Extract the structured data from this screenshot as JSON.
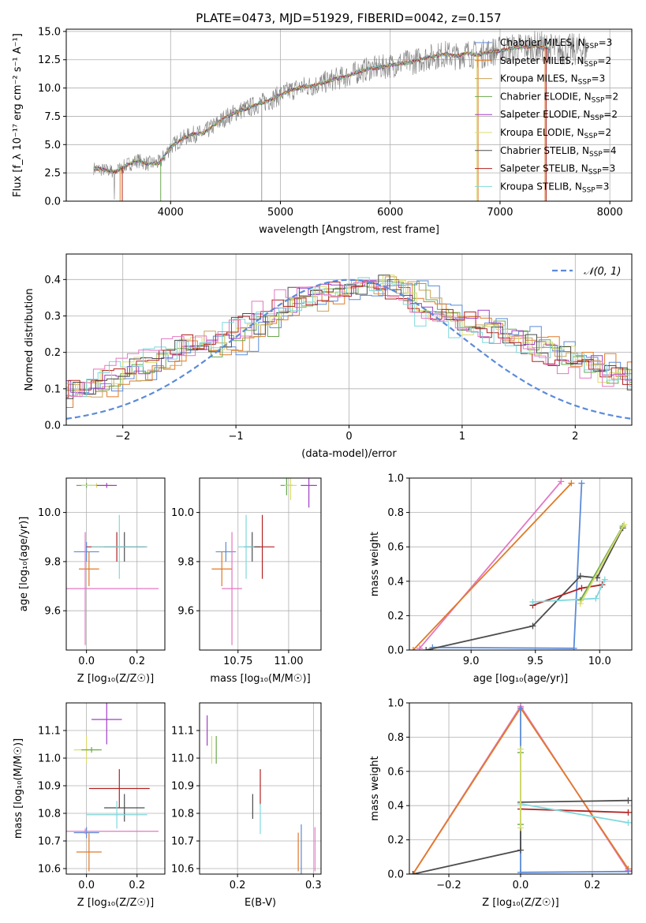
{
  "figure": {
    "title": "PLATE=0473, MJD=51929, FIBERID=0042, z=0.157",
    "colors": {
      "chabrier_miles": "#5b8bd9",
      "salpeter_miles": "#e07a28",
      "kroupa_miles": "#c9a25a",
      "chabrier_elodie": "#6aa84f",
      "salpeter_elodie": "#a23ec7",
      "kroupa_elodie": "#d9dd6c",
      "chabrier_stelib": "#4d4d4d",
      "salpeter_stelib": "#b22222",
      "kroupa_stelib": "#7fd8dc",
      "pink": "#e377c2",
      "gaussian": "#5b8bd9"
    }
  },
  "chart_data": [
    {
      "id": "spectrum",
      "type": "line",
      "xlabel": "wavelength [Angstrom, rest frame]",
      "ylabel": "Flux [f_λ 10⁻¹⁷ erg cm⁻² s⁻¹ A⁻¹]",
      "xlim": [
        3050,
        8200
      ],
      "ylim": [
        0,
        15.2
      ],
      "xticks": [
        4000,
        5000,
        6000,
        7000,
        8000
      ],
      "yticks": [
        0.0,
        2.5,
        5.0,
        7.5,
        10.0,
        12.5,
        15.0
      ],
      "ytick_labels": [
        "0.0",
        "2.5",
        "5.0",
        "7.5",
        "10.0",
        "12.5",
        "15.0"
      ],
      "legend": [
        {
          "name": "Chabrier MILES, N_SSP=3",
          "main": "Chabrier MILES, N",
          "sub": "SSP",
          "tail": "=3",
          "color": "#5b8bd9"
        },
        {
          "name": "Salpeter MILES, N_SSP=2",
          "main": "Salpeter MILES, N",
          "sub": "SSP",
          "tail": "=2",
          "color": "#e07a28"
        },
        {
          "name": "Kroupa MILES, N_SSP=3",
          "main": "Kroupa MILES, N",
          "sub": "SSP",
          "tail": "=3",
          "color": "#c9a25a"
        },
        {
          "name": "Chabrier ELODIE, N_SSP=2",
          "main": "Chabrier ELODIE, N",
          "sub": "SSP",
          "tail": "=2",
          "color": "#6aa84f"
        },
        {
          "name": "Salpeter ELODIE, N_SSP=2",
          "main": "Salpeter ELODIE, N",
          "sub": "SSP",
          "tail": "=2",
          "color": "#a23ec7"
        },
        {
          "name": "Kroupa ELODIE, N_SSP=2",
          "main": "Kroupa ELODIE, N",
          "sub": "SSP",
          "tail": "=2",
          "color": "#d9dd6c"
        },
        {
          "name": "Chabrier STELIB, N_SSP=4",
          "main": "Chabrier STELIB, N",
          "sub": "SSP",
          "tail": "=4",
          "color": "#4d4d4d"
        },
        {
          "name": "Salpeter STELIB, N_SSP=3",
          "main": "Salpeter STELIB, N",
          "sub": "SSP",
          "tail": "=3",
          "color": "#b22222"
        },
        {
          "name": "Kroupa STELIB, N_SSP=3",
          "main": "Kroupa STELIB, N",
          "sub": "SSP",
          "tail": "=3",
          "color": "#7fd8dc"
        }
      ],
      "continuum": [
        [
          3300,
          2.9
        ],
        [
          3500,
          2.6
        ],
        [
          3600,
          3.2
        ],
        [
          3700,
          3.6
        ],
        [
          3800,
          3.3
        ],
        [
          3900,
          3.4
        ],
        [
          4000,
          4.8
        ],
        [
          4100,
          5.5
        ],
        [
          4200,
          5.9
        ],
        [
          4300,
          6.0
        ],
        [
          4400,
          6.7
        ],
        [
          4500,
          7.4
        ],
        [
          4600,
          7.9
        ],
        [
          4700,
          8.2
        ],
        [
          4800,
          8.6
        ],
        [
          4900,
          8.9
        ],
        [
          5000,
          9.4
        ],
        [
          5100,
          9.8
        ],
        [
          5200,
          10.1
        ],
        [
          5300,
          10.2
        ],
        [
          5400,
          10.5
        ],
        [
          5500,
          10.8
        ],
        [
          5600,
          11.0
        ],
        [
          5700,
          11.4
        ],
        [
          5800,
          11.7
        ],
        [
          5900,
          11.8
        ],
        [
          6000,
          12.0
        ],
        [
          6100,
          12.2
        ],
        [
          6200,
          12.3
        ],
        [
          6300,
          12.6
        ],
        [
          6400,
          12.8
        ],
        [
          6500,
          13.0
        ],
        [
          6600,
          12.8
        ],
        [
          6700,
          13.1
        ],
        [
          6800,
          12.9
        ],
        [
          6900,
          13.2
        ],
        [
          7000,
          13.3
        ],
        [
          7100,
          13.5
        ],
        [
          7200,
          13.6
        ],
        [
          7300,
          13.7
        ],
        [
          7400,
          13.6
        ],
        [
          7500,
          13.4
        ]
      ],
      "data_end_wavelength": 7800,
      "model_end_wavelength": 7450
    },
    {
      "id": "residuals",
      "type": "histogram",
      "xlabel": "(data-model)/error",
      "ylabel": "Normed distribution",
      "xlim": [
        -2.5,
        2.5
      ],
      "ylim": [
        0,
        0.47
      ],
      "xticks": [
        -2,
        -1,
        0,
        1,
        2
      ],
      "xtick_labels": [
        "−2",
        "−1",
        "0",
        "1",
        "2"
      ],
      "yticks": [
        0.0,
        0.1,
        0.2,
        0.3,
        0.4
      ],
      "ytick_labels": [
        "0.0",
        "0.1",
        "0.2",
        "0.3",
        "0.4"
      ],
      "legend": [
        {
          "name": "N(0,1)",
          "main": "𝒩(0, 1)",
          "style": "dashed",
          "color": "#5b8bd9"
        }
      ],
      "bin_width": 0.1,
      "base_profile": [
        0.075,
        0.095,
        0.09,
        0.1,
        0.1,
        0.13,
        0.14,
        0.15,
        0.17,
        0.17,
        0.19,
        0.22,
        0.21,
        0.23,
        0.21,
        0.22,
        0.23,
        0.27,
        0.29,
        0.27,
        0.32,
        0.33,
        0.35,
        0.34,
        0.36,
        0.36,
        0.38,
        0.38,
        0.37,
        0.38,
        0.39,
        0.37,
        0.36,
        0.32,
        0.3,
        0.29,
        0.29,
        0.27,
        0.29,
        0.26,
        0.24,
        0.25,
        0.22,
        0.22,
        0.2,
        0.19,
        0.19,
        0.16,
        0.17,
        0.14,
        0.15,
        0.13,
        0.12,
        0.11,
        0.11,
        0.09,
        0.09,
        0.08,
        0.07,
        0.07,
        0.06,
        0.06,
        0.05,
        0.05,
        0.04,
        0.04,
        0.035,
        0.03,
        0.03,
        0.025,
        0.02,
        0.02,
        0.02,
        0.02,
        0.02,
        0.02,
        0.02,
        0.02,
        0.02,
        0.02
      ],
      "gaussian_sigma": 1.0
    },
    {
      "id": "age-vs-z",
      "type": "errorbar",
      "xlabel": "Z [log₁₀(Z/Z☉)]",
      "ylabel": "age  [log₁₀(age/yr)]",
      "xlim": [
        -0.08,
        0.31
      ],
      "ylim": [
        9.44,
        10.14
      ],
      "xticks": [
        0.0,
        0.2
      ],
      "xtick_labels": [
        "0.0",
        "0.2"
      ],
      "yticks": [
        9.6,
        9.8,
        10.0
      ],
      "ytick_labels": [
        "9.6",
        "9.8",
        "10.0"
      ],
      "points": [
        {
          "x": 0.0,
          "y": 9.84,
          "xerr": 0.05,
          "yerr": 0.04,
          "color": "#5b8bd9"
        },
        {
          "x": 0.01,
          "y": 9.77,
          "xerr": 0.04,
          "yerr": 0.07,
          "color": "#e07a28"
        },
        {
          "x": -0.005,
          "y": 9.69,
          "xerr": 0.29,
          "yerr": 0.23,
          "color": "#e377c2"
        },
        {
          "x": 0.12,
          "y": 9.86,
          "xerr": 0.12,
          "yerr": 0.06,
          "color": "#b22222"
        },
        {
          "x": 0.15,
          "y": 9.86,
          "xerr": 0.08,
          "yerr": 0.06,
          "color": "#4d4d4d"
        },
        {
          "x": 0.13,
          "y": 9.86,
          "xerr": 0.11,
          "yerr": 0.13,
          "color": "#7fd8dc"
        },
        {
          "x": 0.0,
          "y": 10.11,
          "xerr": 0.04,
          "yerr": 0.01,
          "color": "#6aa84f"
        },
        {
          "x": 0.04,
          "y": 10.11,
          "xerr": 0.06,
          "yerr": 0.01,
          "color": "#d9dd6c"
        },
        {
          "x": 0.08,
          "y": 10.11,
          "xerr": 0.04,
          "yerr": 0.01,
          "color": "#a23ec7"
        }
      ]
    },
    {
      "id": "age-vs-mass",
      "type": "errorbar",
      "xlabel": "mass [log₁₀(M/M☉)]",
      "ylabel": "",
      "xlim": [
        10.56,
        11.16
      ],
      "ylim": [
        9.44,
        10.14
      ],
      "xticks": [
        10.75,
        11.0
      ],
      "xtick_labels": [
        "10.75",
        "11.00"
      ],
      "yticks": [
        9.6,
        9.8,
        10.0
      ],
      "ytick_labels": [
        "9.6",
        "9.8",
        "10.0"
      ],
      "points": [
        {
          "x": 10.69,
          "y": 9.84,
          "xerr": 0.05,
          "yerr": 0.04,
          "color": "#5b8bd9"
        },
        {
          "x": 10.67,
          "y": 9.77,
          "xerr": 0.05,
          "yerr": 0.07,
          "color": "#e07a28"
        },
        {
          "x": 10.72,
          "y": 9.69,
          "xerr": 0.05,
          "yerr": 0.23,
          "color": "#e377c2"
        },
        {
          "x": 10.87,
          "y": 9.86,
          "xerr": 0.06,
          "yerr": 0.13,
          "color": "#b22222"
        },
        {
          "x": 10.82,
          "y": 9.86,
          "xerr": 0.04,
          "yerr": 0.06,
          "color": "#4d4d4d"
        },
        {
          "x": 10.79,
          "y": 9.86,
          "xerr": 0.04,
          "yerr": 0.13,
          "color": "#7fd8dc"
        },
        {
          "x": 10.99,
          "y": 10.11,
          "xerr": 0.03,
          "yerr": 0.04,
          "color": "#6aa84f"
        },
        {
          "x": 11.01,
          "y": 10.11,
          "xerr": 0.03,
          "yerr": 0.06,
          "color": "#d9dd6c"
        },
        {
          "x": 11.1,
          "y": 10.11,
          "xerr": 0.04,
          "yerr": 0.09,
          "color": "#a23ec7"
        }
      ]
    },
    {
      "id": "weight-vs-age",
      "type": "line",
      "xlabel": "age  [log₁₀(age/yr)]",
      "ylabel": "mass weight",
      "xlim": [
        8.52,
        10.25
      ],
      "ylim": [
        0,
        1.0
      ],
      "xticks": [
        9.0,
        9.5,
        10.0
      ],
      "xtick_labels": [
        "9.0",
        "9.5",
        "10.0"
      ],
      "yticks": [
        0.0,
        0.2,
        0.4,
        0.6,
        0.8,
        1.0
      ],
      "ytick_labels": [
        "0.0",
        "0.2",
        "0.4",
        "0.6",
        "0.8",
        "1.0"
      ],
      "series": [
        {
          "color": "#e377c2",
          "points": [
            [
              8.6,
              0.01
            ],
            [
              9.7,
              0.98
            ]
          ]
        },
        {
          "color": "#e07a28",
          "points": [
            [
              8.55,
              0.0
            ],
            [
              9.78,
              0.97
            ]
          ]
        },
        {
          "color": "#5b8bd9",
          "points": [
            [
              8.7,
              0.015
            ],
            [
              9.8,
              0.01
            ],
            [
              9.86,
              0.97
            ]
          ]
        },
        {
          "color": "#4d4d4d",
          "points": [
            [
              8.65,
              0.0
            ],
            [
              9.48,
              0.14
            ],
            [
              9.85,
              0.43
            ],
            [
              9.98,
              0.42
            ],
            [
              10.18,
              0.71
            ]
          ]
        },
        {
          "color": "#b22222",
          "points": [
            [
              9.48,
              0.26
            ],
            [
              9.86,
              0.36
            ],
            [
              10.02,
              0.38
            ]
          ]
        },
        {
          "color": "#7fd8dc",
          "points": [
            [
              9.48,
              0.28
            ],
            [
              9.97,
              0.3
            ],
            [
              10.04,
              0.41
            ]
          ]
        },
        {
          "color": "#6aa84f",
          "points": [
            [
              9.85,
              0.29
            ],
            [
              10.18,
              0.72
            ]
          ]
        },
        {
          "color": "#d9dd6c",
          "points": [
            [
              9.85,
              0.27
            ],
            [
              10.19,
              0.73
            ]
          ]
        }
      ]
    },
    {
      "id": "mass-vs-z",
      "type": "errorbar",
      "xlabel": "Z [log₁₀(Z/Z☉)]",
      "ylabel": "mass [log₁₀(M/M☉)]",
      "xlim": [
        -0.08,
        0.31
      ],
      "ylim": [
        10.58,
        11.2
      ],
      "xticks": [
        0.0,
        0.2
      ],
      "xtick_labels": [
        "0.0",
        "0.2"
      ],
      "yticks": [
        10.6,
        10.7,
        10.8,
        10.9,
        11.0,
        11.1
      ],
      "ytick_labels": [
        "10.6",
        "10.7",
        "10.8",
        "10.9",
        "11.0",
        "11.1"
      ],
      "points": [
        {
          "x": 0.0,
          "y": 10.73,
          "xerr": 0.05,
          "yerr": 0.02,
          "color": "#5b8bd9"
        },
        {
          "x": 0.01,
          "y": 10.66,
          "xerr": 0.05,
          "yerr": 0.07,
          "color": "#e07a28"
        },
        {
          "x": -0.005,
          "y": 10.735,
          "xerr": 0.29,
          "yerr": 0.01,
          "color": "#e377c2"
        },
        {
          "x": 0.13,
          "y": 10.89,
          "xerr": 0.12,
          "yerr": 0.07,
          "color": "#b22222"
        },
        {
          "x": 0.15,
          "y": 10.82,
          "xerr": 0.08,
          "yerr": 0.05,
          "color": "#4d4d4d"
        },
        {
          "x": 0.12,
          "y": 10.795,
          "xerr": 0.12,
          "yerr": 0.05,
          "color": "#7fd8dc"
        },
        {
          "x": 0.0,
          "y": 11.03,
          "xerr": 0.05,
          "yerr": 0.05,
          "color": "#d9dd6c"
        },
        {
          "x": 0.02,
          "y": 11.03,
          "xerr": 0.04,
          "yerr": 0.01,
          "color": "#6aa84f"
        },
        {
          "x": 0.08,
          "y": 11.14,
          "xerr": 0.06,
          "yerr": 0.09,
          "color": "#a23ec7"
        }
      ]
    },
    {
      "id": "mass-vs-ebv",
      "type": "errorbar",
      "xlabel": "E(B-V)",
      "ylabel": "",
      "xlim": [
        0.15,
        0.31
      ],
      "ylim": [
        10.58,
        11.2
      ],
      "xticks": [
        0.2,
        0.3
      ],
      "xtick_labels": [
        "0.2",
        "0.3"
      ],
      "yticks": [
        10.6,
        10.7,
        10.8,
        10.9,
        11.0,
        11.1
      ],
      "ytick_labels": [
        "10.6",
        "10.7",
        "10.8",
        "10.9",
        "11.0",
        "11.1"
      ],
      "points": [
        {
          "x": 0.284,
          "y": 10.67,
          "xerr": 0,
          "yerr": 0.09,
          "color": "#5b8bd9"
        },
        {
          "x": 0.28,
          "y": 10.66,
          "xerr": 0,
          "yerr": 0.07,
          "color": "#e07a28"
        },
        {
          "x": 0.302,
          "y": 10.67,
          "xerr": 0,
          "yerr": 0.08,
          "color": "#e377c2"
        },
        {
          "x": 0.23,
          "y": 10.895,
          "xerr": 0,
          "yerr": 0.065,
          "color": "#b22222"
        },
        {
          "x": 0.22,
          "y": 10.825,
          "xerr": 0,
          "yerr": 0.045,
          "color": "#4d4d4d"
        },
        {
          "x": 0.23,
          "y": 10.78,
          "xerr": 0,
          "yerr": 0.055,
          "color": "#7fd8dc"
        },
        {
          "x": 0.166,
          "y": 11.03,
          "xerr": 0,
          "yerr": 0.05,
          "color": "#d9dd6c"
        },
        {
          "x": 0.172,
          "y": 11.03,
          "xerr": 0,
          "yerr": 0.05,
          "color": "#6aa84f"
        },
        {
          "x": 0.16,
          "y": 11.1,
          "xerr": 0,
          "yerr": 0.055,
          "color": "#a23ec7"
        }
      ]
    },
    {
      "id": "weight-vs-z",
      "type": "line",
      "xlabel": "Z [log₁₀(Z/Z☉)]",
      "ylabel": "mass weight",
      "xlim": [
        -0.31,
        0.31
      ],
      "ylim": [
        0,
        1.0
      ],
      "xticks": [
        -0.2,
        0.0,
        0.2
      ],
      "xtick_labels": [
        "−0.2",
        "0.0",
        "0.2"
      ],
      "yticks": [
        0.0,
        0.2,
        0.4,
        0.6,
        0.8,
        1.0
      ],
      "ytick_labels": [
        "0.0",
        "0.2",
        "0.4",
        "0.6",
        "0.8",
        "1.0"
      ],
      "series": [
        {
          "color": "#e377c2",
          "points": [
            [
              -0.3,
              0.0
            ],
            [
              0.0,
              0.98
            ],
            [
              0.3,
              0.02
            ]
          ]
        },
        {
          "color": "#e07a28",
          "points": [
            [
              -0.3,
              0.0
            ],
            [
              0.0,
              0.97
            ],
            [
              0.3,
              0.03
            ]
          ]
        },
        {
          "color": "#5b8bd9",
          "points": [
            [
              0.0,
              0.97
            ],
            [
              0.0,
              0.01
            ],
            [
              0.3,
              0.015
            ]
          ]
        },
        {
          "color": "#4d4d4d",
          "points": [
            [
              -0.3,
              0.0
            ],
            [
              0.0,
              0.14
            ],
            [
              0.0,
              0.42
            ],
            [
              0.3,
              0.43
            ]
          ]
        },
        {
          "color": "#b22222",
          "points": [
            [
              0.0,
              0.38
            ],
            [
              0.3,
              0.36
            ]
          ]
        },
        {
          "color": "#7fd8dc",
          "points": [
            [
              0.0,
              0.41
            ],
            [
              0.3,
              0.3
            ]
          ]
        },
        {
          "color": "#6aa84f",
          "points": [
            [
              0.0,
              0.29
            ],
            [
              0.0,
              0.71
            ]
          ]
        },
        {
          "color": "#d9dd6c",
          "points": [
            [
              0.0,
              0.27
            ],
            [
              0.0,
              0.73
            ]
          ]
        }
      ]
    }
  ]
}
